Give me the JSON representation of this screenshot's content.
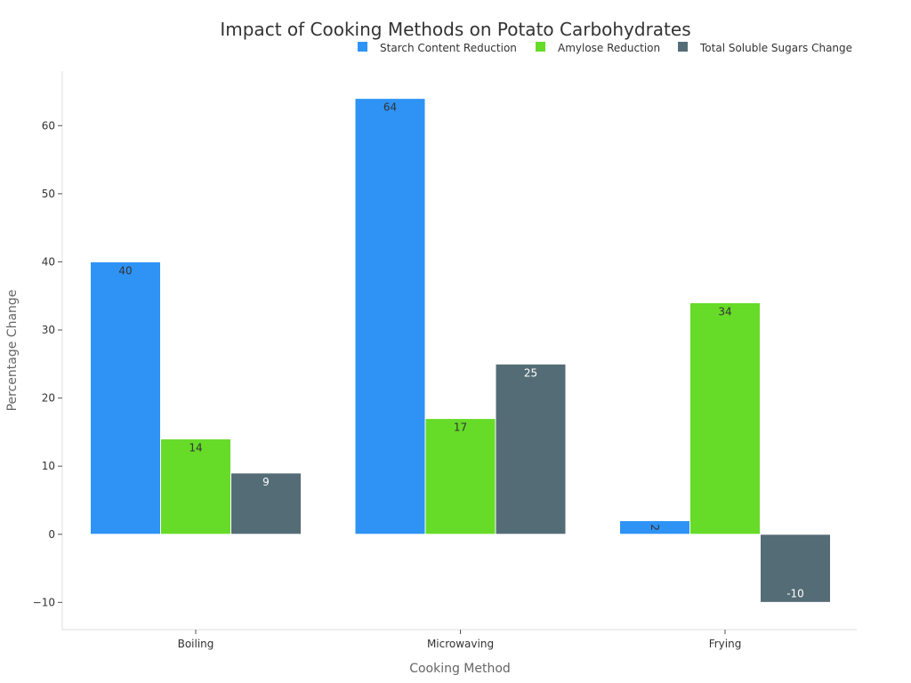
{
  "chart_data": {
    "type": "bar",
    "title": "Impact of Cooking Methods on Potato Carbohydrates",
    "xlabel": "Cooking Method",
    "ylabel": "Percentage Change",
    "categories": [
      "Boiling",
      "Microwaving",
      "Frying"
    ],
    "series": [
      {
        "name": "Starch Content Reduction",
        "values": [
          40,
          64,
          2
        ],
        "color": "#2e93f5"
      },
      {
        "name": "Amylose Reduction",
        "values": [
          14,
          17,
          34
        ],
        "color": "#66db28"
      },
      {
        "name": "Total Soluble Sugars Change",
        "values": [
          9,
          25,
          -10
        ],
        "color": "#546c75"
      }
    ],
    "ylim": [
      -14,
      68
    ],
    "yticks": [
      -10,
      0,
      10,
      20,
      30,
      40,
      50,
      60
    ],
    "ytick_labels": [
      "−10",
      "0",
      "10",
      "20",
      "30",
      "40",
      "50",
      "60"
    ],
    "legend": "top-right",
    "grid": false
  }
}
